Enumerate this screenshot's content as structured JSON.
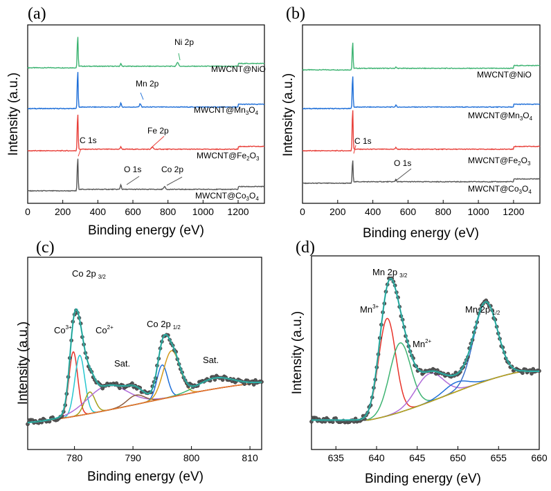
{
  "figure": {
    "description": "Four-panel XPS figure: survey spectra and high-resolution Co 2p / Mn 2p spectra"
  },
  "chart_data": [
    {
      "panel": "(a)",
      "type": "line",
      "title": "",
      "xlabel": "Binding energy (eV)",
      "ylabel": "Intensity (a.u.)",
      "xlim": [
        0,
        1350
      ],
      "xticks": [
        0,
        200,
        400,
        600,
        800,
        1000,
        1200
      ],
      "series": [
        {
          "name": "MWCNT@NiO",
          "color": "#3cb371",
          "offset": 3,
          "annotations": [
            "Ni 2p"
          ]
        },
        {
          "name": "MWCNT@Mn₃O₄",
          "color": "#1f6fd8",
          "offset": 2,
          "annotations": [
            "Mn 2p"
          ]
        },
        {
          "name": "MWCNT@Fe₂O₃",
          "color": "#e8403a",
          "offset": 1,
          "annotations": [
            "C 1s",
            "Fe 2p"
          ]
        },
        {
          "name": "MWCNT@Co₃O₄",
          "color": "#555555",
          "offset": 0,
          "annotations": [
            "O 1s",
            "Co 2p"
          ]
        }
      ],
      "peaks_eV": {
        "C 1s": 285,
        "O 1s": 531,
        "Mn 2p": 642,
        "Fe 2p": 711,
        "Co 2p": 780,
        "Ni 2p": 855
      }
    },
    {
      "panel": "(b)",
      "type": "line",
      "title": "",
      "xlabel": "Binding energy (eV)",
      "ylabel": "Intensity (a.u.)",
      "xlim": [
        0,
        1350
      ],
      "xticks": [
        0,
        200,
        400,
        600,
        800,
        1000,
        1200
      ],
      "series": [
        {
          "name": "MWCNT@NiO",
          "color": "#3cb371",
          "offset": 3
        },
        {
          "name": "MWCNT@Mn₃O₄",
          "color": "#1f6fd8",
          "offset": 2
        },
        {
          "name": "MWCNT@Fe₂O₃",
          "color": "#e8403a",
          "offset": 1,
          "annotations": [
            "C 1s"
          ]
        },
        {
          "name": "MWCNT@Co₃O₄",
          "color": "#555555",
          "offset": 0,
          "annotations": [
            "O 1s"
          ]
        }
      ],
      "peaks_eV": {
        "C 1s": 285,
        "O 1s": 531
      }
    },
    {
      "panel": "(c)",
      "type": "line",
      "title": "",
      "xlabel": "Binding energy (eV)",
      "ylabel": "Intensity (a.u.)",
      "xlim": [
        772,
        812
      ],
      "xticks": [
        780,
        790,
        800,
        810
      ],
      "ylim": [
        0,
        1.05
      ],
      "background": {
        "name": "Background",
        "color": "#e8702a",
        "y0": 0.04,
        "y1": 0.3
      },
      "components": [
        {
          "name": "Co3+ 2p3/2",
          "center": 779.8,
          "sigma": 0.75,
          "amp": 0.42,
          "color": "#e8332a"
        },
        {
          "name": "Co2+ 2p3/2",
          "center": 780.9,
          "sigma": 0.85,
          "amp": 0.39,
          "color": "#26c6cf"
        },
        {
          "name": "Co 2p3/2 shoulder",
          "center": 782.6,
          "sigma": 0.9,
          "amp": 0.14,
          "color": "#a4a01a"
        },
        {
          "name": "Sat. (2p3/2)",
          "center": 785.6,
          "sigma": 3.4,
          "amp": 0.16,
          "color": "#b06cd9"
        },
        {
          "name": "Sat. (2p3/2) b",
          "center": 790.5,
          "sigma": 1.5,
          "amp": 0.06,
          "color": "#8b5a3c"
        },
        {
          "name": "Co3+ 2p1/2",
          "center": 795.0,
          "sigma": 0.9,
          "amp": 0.22,
          "color": "#1f6fd8"
        },
        {
          "name": "Co2+ 2p1/2",
          "center": 796.6,
          "sigma": 1.4,
          "amp": 0.3,
          "color": "#d49a1a"
        },
        {
          "name": "Sat. (2p1/2)",
          "center": 804.0,
          "sigma": 3.0,
          "amp": 0.07,
          "color": "#3cb371"
        }
      ],
      "labels": [
        "Co 2p 3/2",
        "Co3+",
        "Co2+",
        "Sat.",
        "Co 2p 1/2",
        "Sat."
      ]
    },
    {
      "panel": "(d)",
      "type": "line",
      "title": "",
      "xlabel": "Binding energy (eV)",
      "ylabel": "Intensity (a.u.)",
      "xlim": [
        632,
        660
      ],
      "xticks": [
        635,
        640,
        645,
        650,
        655,
        660
      ],
      "ylim": [
        0,
        1.02
      ],
      "background": {
        "name": "Background",
        "color": "#b8a21a",
        "y0": 0.02,
        "y1": 0.33,
        "x0": 639,
        "x1": 658
      },
      "components": [
        {
          "name": "Mn3+ 2p3/2",
          "center": 641.3,
          "sigma": 1.05,
          "amp": 0.62,
          "color": "#e8332a"
        },
        {
          "name": "Mn2+ 2p3/2",
          "center": 642.9,
          "sigma": 1.3,
          "amp": 0.44,
          "color": "#3cb371"
        },
        {
          "name": "Mn 2p3/2 satellite",
          "center": 646.5,
          "sigma": 1.7,
          "amp": 0.18,
          "color": "#b06cd9"
        },
        {
          "name": "Mn 2p3/2 satellite b",
          "center": 649.8,
          "sigma": 1.5,
          "amp": 0.06,
          "color": "#1f6fd8"
        },
        {
          "name": "Mn 2p1/2",
          "center": 653.4,
          "sigma": 1.45,
          "amp": 0.5,
          "color": "#3a6fc8"
        }
      ],
      "labels": [
        "Mn 2p 3/2",
        "Mn3+",
        "Mn2+",
        "Mn 2p 1/2"
      ]
    }
  ],
  "panels": {
    "a": {
      "letter": "(a)"
    },
    "b": {
      "letter": "(b)"
    },
    "c": {
      "letter": "(c)"
    },
    "d": {
      "letter": "(d)"
    }
  },
  "axis_text": {
    "xlabel": "Binding energy (eV)",
    "ylabel": "Intensity (a.u.)"
  },
  "labels": {
    "ni2p": "Ni 2p",
    "mn2p": "Mn 2p",
    "fe2p": "Fe 2p",
    "c1s": "C 1s",
    "o1s": "O 1s",
    "co2p": "Co 2p",
    "nio_prefix": "MWCNT@NiO",
    "mn_prefix": "MWCNT@Mn",
    "mn_sub1": "3",
    "mn_mid": "O",
    "mn_sub2": "4",
    "fe_prefix": "MWCNT@Fe",
    "fe_sub1": "2",
    "fe_mid": "O",
    "fe_sub2": "3",
    "co_prefix": "MWCNT@Co",
    "co_sub1": "3",
    "co_mid": "O",
    "co_sub2": "4",
    "co2p32_main": "Co 2p",
    "co2p32_sub": "3/2",
    "co2p12_main": "Co 2p",
    "co2p12_sub": "1/2",
    "co3_main": "Co",
    "co3_sup": "3+",
    "co2_main": "Co",
    "co2_sup": "2+",
    "sat": "Sat.",
    "mn2p32_main": "Mn 2p",
    "mn2p32_sub": "3/2",
    "mn2p12_main": "Mn 2p",
    "mn2p12_sub": "1/2",
    "mn3_main": "Mn",
    "mn3_sup": "3+",
    "mn2_main": "Mn",
    "mn2_sup": "2+"
  }
}
